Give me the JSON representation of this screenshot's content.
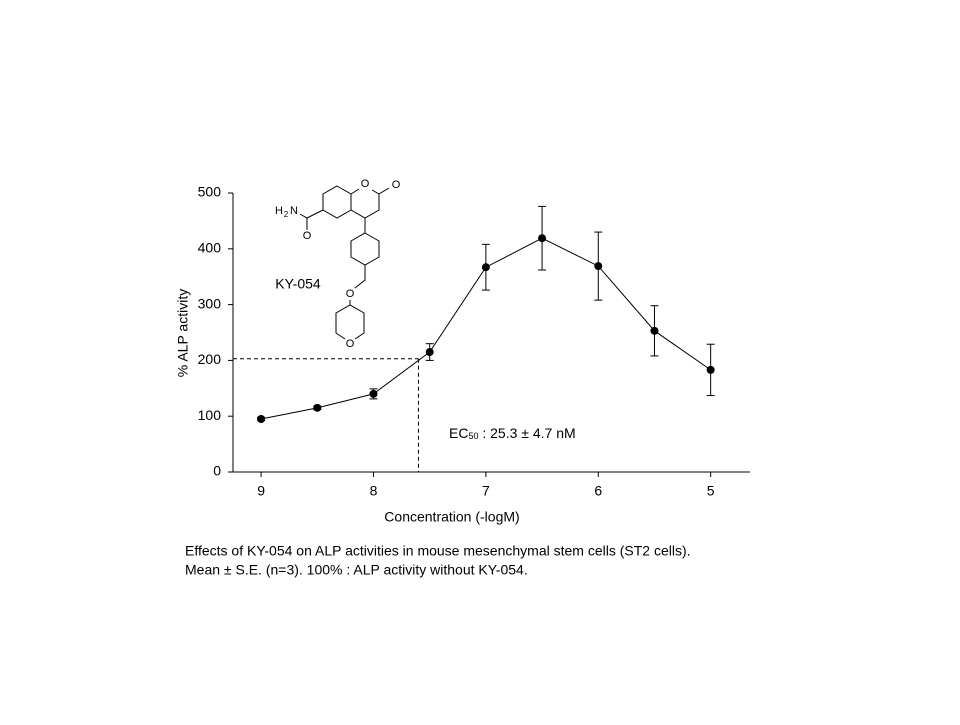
{
  "chart_data": {
    "type": "line",
    "xlabel": "Concentration (-logM)",
    "ylabel": "% ALP activity",
    "x": [
      9,
      8.5,
      8,
      7.5,
      7,
      6.5,
      6,
      5.5,
      5
    ],
    "values": [
      95,
      115,
      140,
      215,
      367,
      419,
      369,
      253,
      183
    ],
    "errors": [
      3,
      3,
      9,
      15,
      41,
      57,
      61,
      45,
      46
    ],
    "color": "#000000",
    "xlim": [
      9.25,
      4.65
    ],
    "xticks": [
      9,
      8,
      7,
      6,
      5
    ],
    "ylim": [
      0,
      500
    ],
    "yticks": [
      0,
      100,
      200,
      300,
      400,
      500
    ],
    "reference": {
      "x": 7.6,
      "y": 203
    },
    "annotation": {
      "main": "EC",
      "sub": "50",
      "rest": " : 25.3 ± 4.7 nM"
    },
    "structure": {
      "name": "KY-054",
      "ring_oxygen": "O",
      "carbonyl_oxygen": "O",
      "amine_h": "H",
      "amine_sub": "2",
      "amine_n": "N",
      "amide_oxygen": "O",
      "ether_oxygen": "O",
      "oxane_oxygen": "O"
    },
    "caption": [
      "Effects of KY-054 on ALP activities in mouse mesenchymal  stem cells (ST2 cells).",
      "Mean ± S.E. (n=3). 100% : ALP activity without KY-054."
    ]
  }
}
